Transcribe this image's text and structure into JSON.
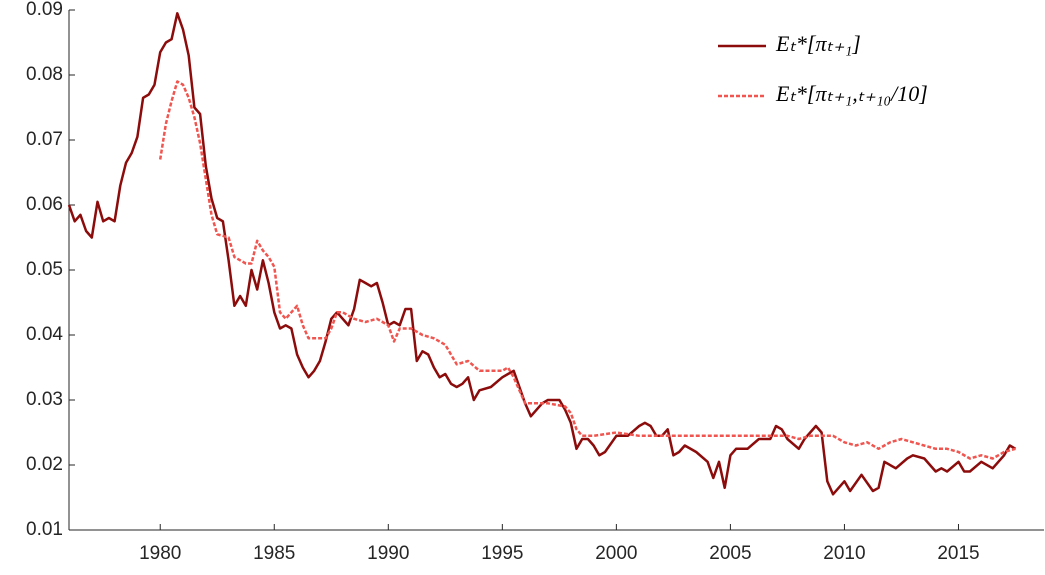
{
  "chart_data": {
    "type": "line",
    "xlim": [
      1976,
      2018.75
    ],
    "xticks": [
      1980,
      1985,
      1990,
      1995,
      2000,
      2005,
      2010,
      2015
    ],
    "ylim": [
      0.01,
      0.09
    ],
    "yticks": [
      0.01,
      0.02,
      0.03,
      0.04,
      0.05,
      0.06,
      0.07,
      0.08,
      0.09
    ],
    "grid": false,
    "legend": "upper right",
    "series": [
      {
        "name": "Eₜ*[πₜ₊₁]",
        "color": "#8c0b0b",
        "style": "solid",
        "x": [
          1976.0,
          1976.25,
          1976.5,
          1976.75,
          1977.0,
          1977.25,
          1977.5,
          1977.75,
          1978.0,
          1978.25,
          1978.5,
          1978.75,
          1979.0,
          1979.25,
          1979.5,
          1979.75,
          1980.0,
          1980.25,
          1980.5,
          1980.75,
          1981.0,
          1981.25,
          1981.5,
          1981.75,
          1982.0,
          1982.25,
          1982.5,
          1982.75,
          1983.0,
          1983.25,
          1983.5,
          1983.75,
          1984.0,
          1984.25,
          1984.5,
          1984.75,
          1985.0,
          1985.25,
          1985.5,
          1985.75,
          1986.0,
          1986.25,
          1986.5,
          1986.75,
          1987.0,
          1987.25,
          1987.5,
          1987.75,
          1988.0,
          1988.25,
          1988.5,
          1988.75,
          1989.0,
          1989.25,
          1989.5,
          1989.75,
          1990.0,
          1990.25,
          1990.5,
          1990.75,
          1991.0,
          1991.25,
          1991.5,
          1991.75,
          1992.0,
          1992.25,
          1992.5,
          1992.75,
          1993.0,
          1993.25,
          1993.5,
          1993.75,
          1994.0,
          1994.5,
          1995.0,
          1995.25,
          1995.5,
          1995.75,
          1996.0,
          1996.25,
          1996.5,
          1996.75,
          1997.0,
          1997.5,
          1997.75,
          1998.0,
          1998.25,
          1998.5,
          1998.75,
          1999.0,
          1999.25,
          1999.5,
          2000.0,
          2000.5,
          2001.0,
          2001.25,
          2001.5,
          2001.75,
          2002.0,
          2002.25,
          2002.5,
          2002.75,
          2003.0,
          2003.5,
          2004.0,
          2004.25,
          2004.5,
          2004.75,
          2005.0,
          2005.25,
          2005.75,
          2006.25,
          2006.75,
          2007.0,
          2007.25,
          2007.5,
          2008.0,
          2008.25,
          2008.75,
          2009.0,
          2009.25,
          2009.5,
          2009.75,
          2010.0,
          2010.25,
          2010.75,
          2011.25,
          2011.5,
          2011.75,
          2012.25,
          2012.75,
          2013.0,
          2013.5,
          2014.0,
          2014.25,
          2014.5,
          2015.0,
          2015.25,
          2015.5,
          2016.0,
          2016.5,
          2017.0,
          2017.25,
          2017.5
        ],
        "values": [
          0.06,
          0.0575,
          0.0585,
          0.056,
          0.055,
          0.0605,
          0.0575,
          0.058,
          0.0575,
          0.063,
          0.0665,
          0.068,
          0.0705,
          0.0765,
          0.077,
          0.0785,
          0.0835,
          0.085,
          0.0855,
          0.0895,
          0.087,
          0.083,
          0.075,
          0.074,
          0.066,
          0.061,
          0.058,
          0.0575,
          0.0515,
          0.0445,
          0.046,
          0.0445,
          0.05,
          0.047,
          0.0515,
          0.048,
          0.0435,
          0.041,
          0.0415,
          0.041,
          0.037,
          0.035,
          0.0335,
          0.0345,
          0.036,
          0.039,
          0.0425,
          0.0435,
          0.0425,
          0.0415,
          0.044,
          0.0485,
          0.048,
          0.0475,
          0.048,
          0.045,
          0.0415,
          0.042,
          0.0415,
          0.044,
          0.044,
          0.036,
          0.0375,
          0.037,
          0.035,
          0.0335,
          0.034,
          0.0325,
          0.032,
          0.0325,
          0.0335,
          0.03,
          0.0315,
          0.032,
          0.0335,
          0.034,
          0.0345,
          0.032,
          0.0295,
          0.0275,
          0.0285,
          0.0295,
          0.03,
          0.03,
          0.0285,
          0.0265,
          0.0225,
          0.024,
          0.024,
          0.023,
          0.0215,
          0.022,
          0.0245,
          0.0245,
          0.026,
          0.0265,
          0.026,
          0.0245,
          0.0245,
          0.0255,
          0.0215,
          0.022,
          0.023,
          0.022,
          0.0205,
          0.018,
          0.0205,
          0.0165,
          0.0215,
          0.0225,
          0.0225,
          0.024,
          0.024,
          0.026,
          0.0255,
          0.024,
          0.0225,
          0.024,
          0.026,
          0.025,
          0.0175,
          0.0155,
          0.0165,
          0.0175,
          0.016,
          0.0185,
          0.016,
          0.0165,
          0.0205,
          0.0195,
          0.021,
          0.0215,
          0.021,
          0.019,
          0.0195,
          0.019,
          0.0205,
          0.019,
          0.019,
          0.0205,
          0.0195,
          0.0215,
          0.023,
          0.0225
        ]
      },
      {
        "name": "Eₜ*[πₜ₊₁,ₜ₊₁₀/10]",
        "color": "#f0554f",
        "style": "dotted",
        "x": [
          1980.0,
          1980.25,
          1980.5,
          1980.75,
          1981.0,
          1981.25,
          1981.5,
          1981.75,
          1982.0,
          1982.25,
          1982.5,
          1983.0,
          1983.25,
          1983.75,
          1984.0,
          1984.25,
          1984.5,
          1984.75,
          1985.0,
          1985.25,
          1985.5,
          1985.75,
          1986.0,
          1986.25,
          1986.5,
          1987.25,
          1987.5,
          1987.75,
          1988.0,
          1988.5,
          1989.0,
          1989.5,
          1990.0,
          1990.25,
          1990.5,
          1991.0,
          1991.5,
          1992.0,
          1992.5,
          1993.0,
          1993.5,
          1994.0,
          1995.0,
          1995.25,
          1995.5,
          1996.0,
          1996.5,
          1997.0,
          1997.75,
          1998.0,
          1998.25,
          1998.5,
          1999.0,
          2000.0,
          2001.0,
          2002.0,
          2003.0,
          2005.0,
          2007.0,
          2007.5,
          2008.0,
          2008.5,
          2009.0,
          2009.5,
          2010.0,
          2010.5,
          2011.0,
          2011.5,
          2012.0,
          2012.5,
          2013.0,
          2014.0,
          2014.5,
          2015.0,
          2015.5,
          2016.0,
          2016.5,
          2017.0,
          2017.5
        ],
        "values": [
          0.067,
          0.0725,
          0.076,
          0.079,
          0.0785,
          0.0765,
          0.0735,
          0.0695,
          0.064,
          0.0585,
          0.0555,
          0.055,
          0.052,
          0.051,
          0.051,
          0.0545,
          0.053,
          0.052,
          0.0505,
          0.0435,
          0.0425,
          0.0435,
          0.0445,
          0.0415,
          0.0395,
          0.0395,
          0.041,
          0.0435,
          0.0435,
          0.0425,
          0.042,
          0.0425,
          0.0415,
          0.039,
          0.041,
          0.041,
          0.04,
          0.0395,
          0.0385,
          0.0355,
          0.036,
          0.0345,
          0.0345,
          0.035,
          0.0335,
          0.0295,
          0.0295,
          0.0295,
          0.029,
          0.028,
          0.0255,
          0.0245,
          0.0245,
          0.025,
          0.0245,
          0.0245,
          0.0245,
          0.0245,
          0.0245,
          0.0245,
          0.024,
          0.0245,
          0.0245,
          0.0245,
          0.0235,
          0.023,
          0.0235,
          0.0225,
          0.0235,
          0.024,
          0.0235,
          0.0225,
          0.0225,
          0.022,
          0.021,
          0.0215,
          0.021,
          0.022,
          0.0225
        ]
      }
    ]
  }
}
